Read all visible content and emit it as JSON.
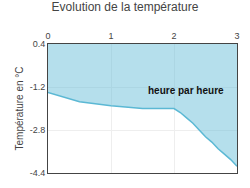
{
  "chart_data": {
    "type": "area",
    "title": "Evolution de la température",
    "ylabel": "Température en °C",
    "x": [
      0,
      0.5,
      1.0,
      1.5,
      2.0,
      2.1,
      2.2,
      2.3,
      2.4,
      2.5,
      2.6,
      2.7,
      2.8,
      2.9,
      3.0
    ],
    "values": [
      -1.4,
      -1.75,
      -1.9,
      -2.0,
      -2.0,
      -2.15,
      -2.35,
      -2.55,
      -2.8,
      -3.05,
      -3.25,
      -3.5,
      -3.7,
      -3.9,
      -4.15
    ],
    "color": "#5bb8d4",
    "xlim": [
      0,
      3
    ],
    "ylim": [
      -4.4,
      0.4
    ],
    "xticks": [
      0,
      1,
      2,
      3
    ],
    "yticks": [
      0.4,
      -1.2,
      -2.8,
      -4.4
    ],
    "grid": true,
    "annotations": [
      {
        "text": "heure par heure",
        "x": 1.55,
        "y": -1.05
      }
    ]
  }
}
